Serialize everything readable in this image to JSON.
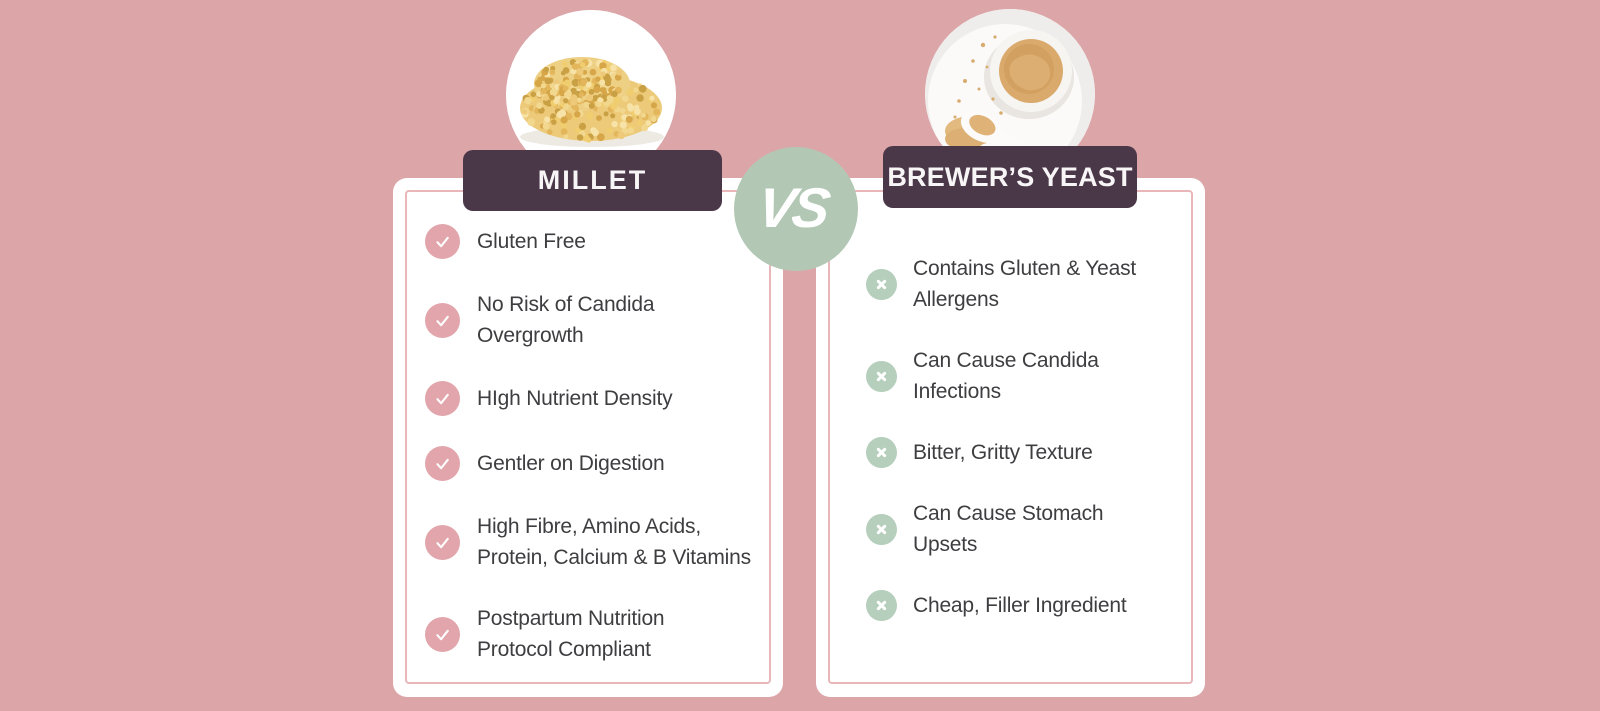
{
  "infographic": {
    "vs_label": "VS",
    "left": {
      "title": "MILLET",
      "image": "millet-grains-photo",
      "icon": "check",
      "items": [
        "Gluten Free",
        "No Risk of Candida\nOvergrowth",
        "HIgh Nutrient Density",
        "Gentler on Digestion",
        "High Fibre, Amino Acids,\nProtein, Calcium & B Vitamins",
        "Postpartum Nutrition\nProtocol Compliant"
      ]
    },
    "right": {
      "title": "BREWER’S YEAST",
      "image": "brewers-yeast-powder-photo",
      "icon": "cross",
      "items": [
        "Contains Gluten & Yeast\nAllergens",
        "Can Cause Candida\nInfections",
        "Bitter, Gritty Texture",
        "Can Cause Stomach\nUpsets",
        "Cheap, Filler Ingredient"
      ]
    },
    "colors": {
      "background": "#dca5a8",
      "card": "#ffffff",
      "card_border": "#e9b7ba",
      "badge": "#4a3849",
      "badge_text": "#f8f5f7",
      "vs_circle": "#b2c8b5",
      "check_circle": "#e2a5ab",
      "cross_circle": "#b6cebc",
      "item_text": "#3e3d40"
    }
  }
}
